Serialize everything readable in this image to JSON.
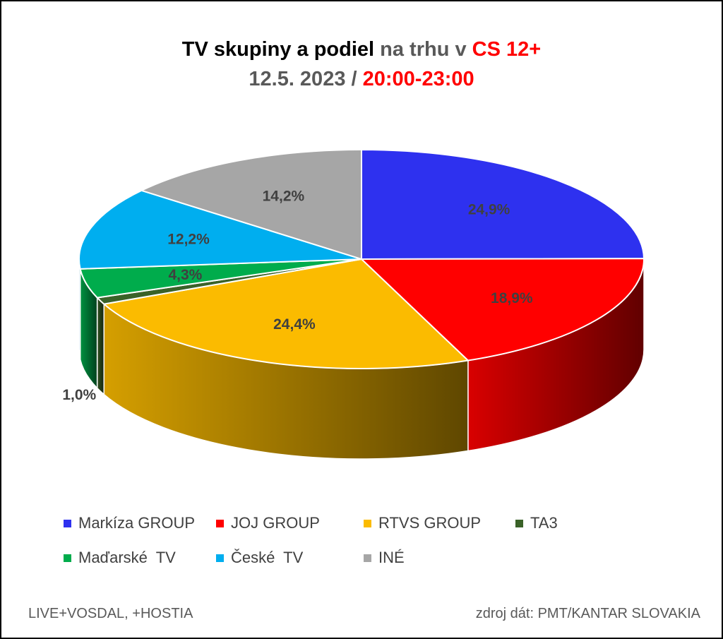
{
  "title": {
    "line1": [
      {
        "text": "TV skupiny a podiel ",
        "color": "#000000"
      },
      {
        "text": "na trhu v ",
        "color": "#595959"
      },
      {
        "text": "CS 12+",
        "color": "#ff0000"
      }
    ],
    "line2": [
      {
        "text": "12.5. 2023 / ",
        "color": "#595959"
      },
      {
        "text": "20:00-23:00",
        "color": "#ff0000"
      }
    ]
  },
  "chart_data": {
    "type": "pie",
    "style": "3d",
    "series": [
      {
        "name": "Markíza GROUP",
        "value": 24.9,
        "label": "24,9%",
        "color": "#2e31ef"
      },
      {
        "name": "JOJ GROUP",
        "value": 18.9,
        "label": "18,9%",
        "color": "#ff0000"
      },
      {
        "name": "RTVS GROUP",
        "value": 24.4,
        "label": "24,4%",
        "color": "#fbbb00"
      },
      {
        "name": "TA3",
        "value": 1.0,
        "label": "1,0%",
        "color": "#3a6228"
      },
      {
        "name": "Maďarské  TV",
        "value": 4.3,
        "label": "4,3%",
        "color": "#00ac4c"
      },
      {
        "name": "České  TV",
        "value": 12.2,
        "label": "12,2%",
        "color": "#00aeef"
      },
      {
        "name": "INÉ",
        "value": 14.2,
        "label": "14,2%",
        "color": "#a6a6a6"
      }
    ],
    "legend_position": "bottom"
  },
  "footer": {
    "left": "LIVE+VOSDAL, +HOSTIA",
    "right": "zdroj dát: PMT/KANTAR SLOVAKIA"
  }
}
